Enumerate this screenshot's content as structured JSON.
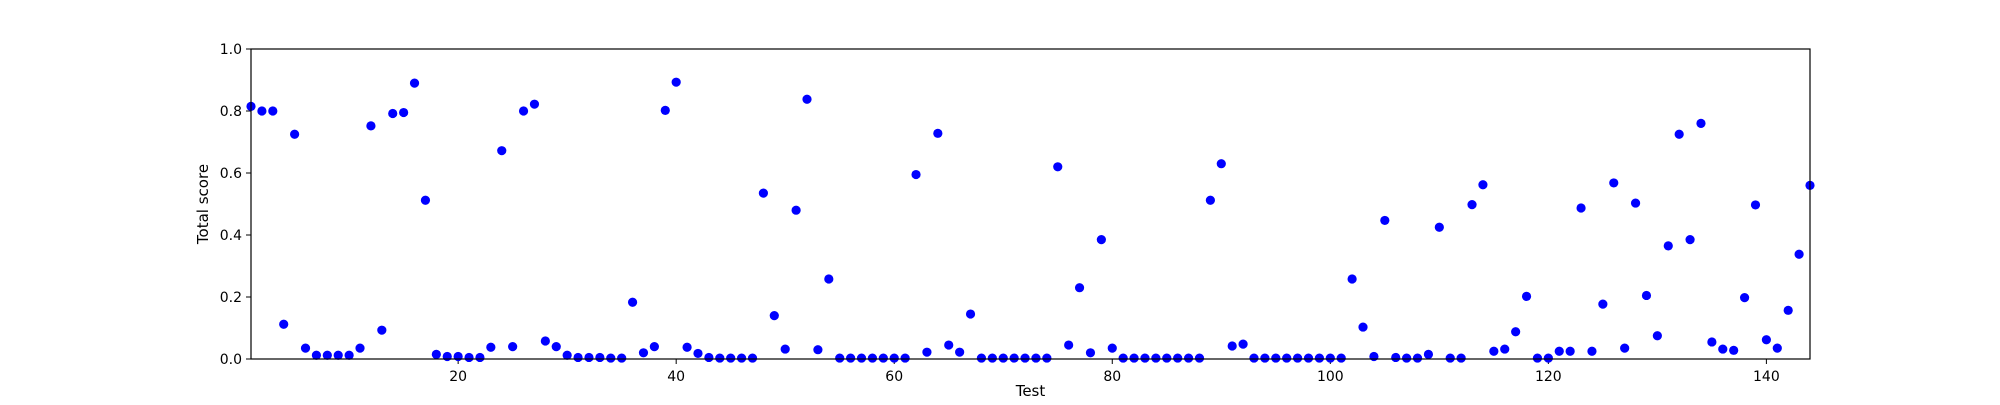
{
  "chart_data": {
    "type": "scatter",
    "title": "",
    "xlabel": "Test",
    "ylabel": "Total score",
    "xlim": [
      1,
      144
    ],
    "ylim": [
      0,
      1
    ],
    "x_ticks": [
      20,
      40,
      60,
      80,
      100,
      120,
      140
    ],
    "y_ticks": [
      0.0,
      0.2,
      0.4,
      0.6,
      0.8,
      1.0
    ],
    "grid": false,
    "legend": "none",
    "marker_color": "#0000ff",
    "series": [
      {
        "points": [
          [
            1,
            0.815
          ],
          [
            2,
            0.8
          ],
          [
            3,
            0.8
          ],
          [
            4,
            0.112
          ],
          [
            5,
            0.725
          ],
          [
            6,
            0.035
          ],
          [
            7,
            0.012
          ],
          [
            8,
            0.012
          ],
          [
            9,
            0.012
          ],
          [
            10,
            0.012
          ],
          [
            11,
            0.035
          ],
          [
            12,
            0.752
          ],
          [
            13,
            0.093
          ],
          [
            14,
            0.792
          ],
          [
            15,
            0.795
          ],
          [
            16,
            0.89
          ],
          [
            17,
            0.512
          ],
          [
            18,
            0.015
          ],
          [
            19,
            0.008
          ],
          [
            20,
            0.008
          ],
          [
            21,
            0.005
          ],
          [
            22,
            0.005
          ],
          [
            23,
            0.038
          ],
          [
            24,
            0.672
          ],
          [
            25,
            0.04
          ],
          [
            26,
            0.8
          ],
          [
            27,
            0.822
          ],
          [
            28,
            0.058
          ],
          [
            29,
            0.04
          ],
          [
            30,
            0.012
          ],
          [
            31,
            0.005
          ],
          [
            32,
            0.005
          ],
          [
            33,
            0.005
          ],
          [
            34,
            0.003
          ],
          [
            35,
            0.003
          ],
          [
            36,
            0.183
          ],
          [
            37,
            0.02
          ],
          [
            38,
            0.04
          ],
          [
            39,
            0.802
          ],
          [
            40,
            0.893
          ],
          [
            41,
            0.038
          ],
          [
            42,
            0.018
          ],
          [
            43,
            0.005
          ],
          [
            44,
            0.003
          ],
          [
            45,
            0.003
          ],
          [
            46,
            0.003
          ],
          [
            47,
            0.003
          ],
          [
            48,
            0.535
          ],
          [
            49,
            0.14
          ],
          [
            50,
            0.032
          ],
          [
            51,
            0.48
          ],
          [
            52,
            0.838
          ],
          [
            53,
            0.03
          ],
          [
            54,
            0.258
          ],
          [
            55,
            0.003
          ],
          [
            56,
            0.003
          ],
          [
            57,
            0.003
          ],
          [
            58,
            0.003
          ],
          [
            59,
            0.003
          ],
          [
            60,
            0.003
          ],
          [
            61,
            0.003
          ],
          [
            62,
            0.595
          ],
          [
            63,
            0.022
          ],
          [
            64,
            0.728
          ],
          [
            65,
            0.045
          ],
          [
            66,
            0.022
          ],
          [
            67,
            0.145
          ],
          [
            68,
            0.003
          ],
          [
            69,
            0.003
          ],
          [
            70,
            0.003
          ],
          [
            71,
            0.003
          ],
          [
            72,
            0.003
          ],
          [
            73,
            0.003
          ],
          [
            74,
            0.003
          ],
          [
            75,
            0.62
          ],
          [
            76,
            0.045
          ],
          [
            77,
            0.23
          ],
          [
            78,
            0.02
          ],
          [
            79,
            0.385
          ],
          [
            80,
            0.035
          ],
          [
            81,
            0.003
          ],
          [
            82,
            0.003
          ],
          [
            83,
            0.003
          ],
          [
            84,
            0.003
          ],
          [
            85,
            0.003
          ],
          [
            86,
            0.003
          ],
          [
            87,
            0.003
          ],
          [
            88,
            0.003
          ],
          [
            89,
            0.512
          ],
          [
            90,
            0.63
          ],
          [
            91,
            0.042
          ],
          [
            92,
            0.048
          ],
          [
            93,
            0.003
          ],
          [
            94,
            0.003
          ],
          [
            95,
            0.003
          ],
          [
            96,
            0.003
          ],
          [
            97,
            0.003
          ],
          [
            98,
            0.003
          ],
          [
            99,
            0.003
          ],
          [
            100,
            0.003
          ],
          [
            101,
            0.003
          ],
          [
            102,
            0.258
          ],
          [
            103,
            0.103
          ],
          [
            104,
            0.008
          ],
          [
            105,
            0.447
          ],
          [
            106,
            0.005
          ],
          [
            107,
            0.003
          ],
          [
            108,
            0.003
          ],
          [
            109,
            0.015
          ],
          [
            110,
            0.425
          ],
          [
            111,
            0.003
          ],
          [
            112,
            0.003
          ],
          [
            113,
            0.498
          ],
          [
            114,
            0.562
          ],
          [
            115,
            0.025
          ],
          [
            116,
            0.032
          ],
          [
            117,
            0.088
          ],
          [
            118,
            0.202
          ],
          [
            119,
            0.003
          ],
          [
            120,
            0.003
          ],
          [
            121,
            0.025
          ],
          [
            122,
            0.025
          ],
          [
            123,
            0.487
          ],
          [
            124,
            0.025
          ],
          [
            125,
            0.177
          ],
          [
            126,
            0.568
          ],
          [
            127,
            0.035
          ],
          [
            128,
            0.503
          ],
          [
            129,
            0.205
          ],
          [
            130,
            0.075
          ],
          [
            131,
            0.365
          ],
          [
            132,
            0.725
          ],
          [
            133,
            0.385
          ],
          [
            134,
            0.76
          ],
          [
            135,
            0.055
          ],
          [
            136,
            0.032
          ],
          [
            137,
            0.028
          ],
          [
            138,
            0.198
          ],
          [
            139,
            0.497
          ],
          [
            140,
            0.062
          ],
          [
            141,
            0.035
          ],
          [
            142,
            0.157
          ],
          [
            143,
            0.338
          ],
          [
            144,
            0.56
          ]
        ]
      }
    ]
  }
}
